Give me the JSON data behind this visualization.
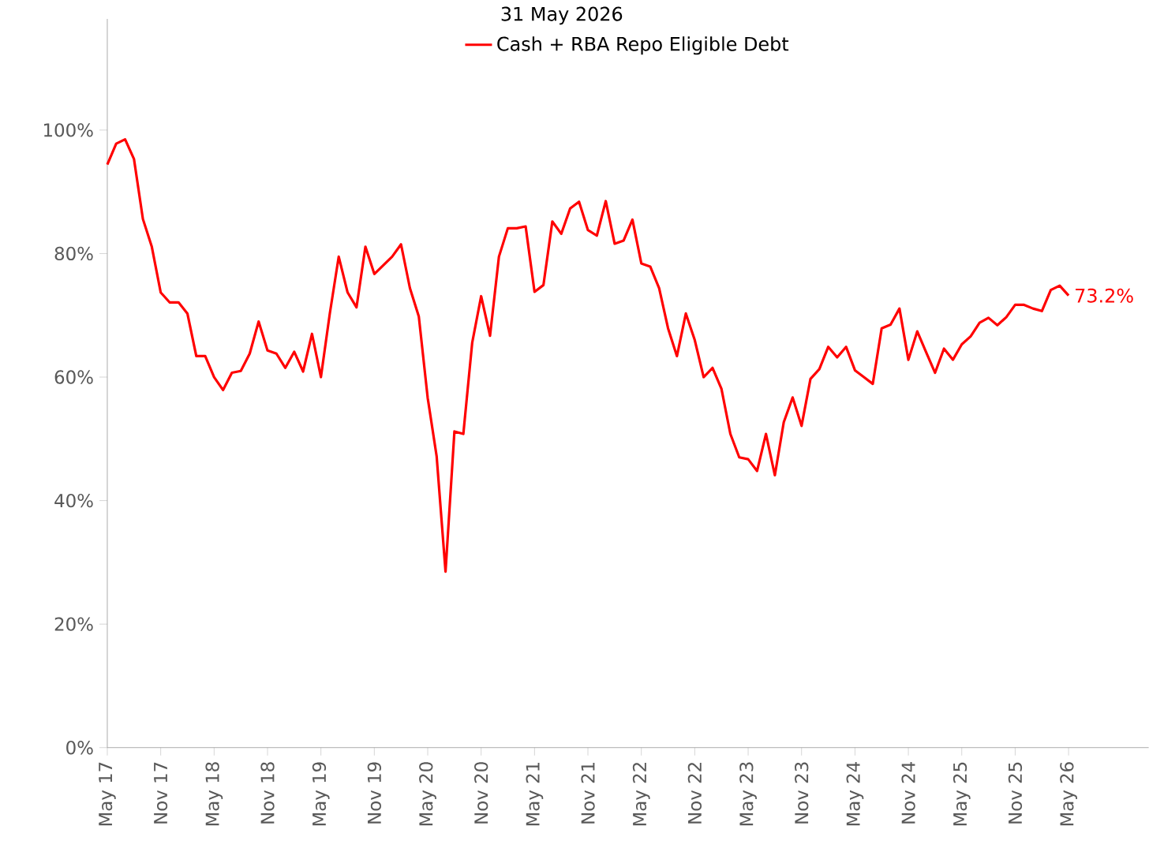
{
  "chart_data": {
    "type": "line",
    "subtitle": "31 May 2026",
    "x": [
      "2017-05",
      "2017-06",
      "2017-07",
      "2017-08",
      "2017-09",
      "2017-10",
      "2017-11",
      "2017-12",
      "2018-01",
      "2018-02",
      "2018-03",
      "2018-04",
      "2018-05",
      "2018-06",
      "2018-07",
      "2018-08",
      "2018-09",
      "2018-10",
      "2018-11",
      "2018-12",
      "2019-01",
      "2019-02",
      "2019-03",
      "2019-04",
      "2019-05",
      "2019-06",
      "2019-07",
      "2019-08",
      "2019-09",
      "2019-10",
      "2019-11",
      "2019-12",
      "2020-01",
      "2020-02",
      "2020-03",
      "2020-04",
      "2020-05",
      "2020-06",
      "2020-07",
      "2020-08",
      "2020-09",
      "2020-10",
      "2020-11",
      "2020-12",
      "2021-01",
      "2021-02",
      "2021-03",
      "2021-04",
      "2021-05",
      "2021-06",
      "2021-07",
      "2021-08",
      "2021-09",
      "2021-10",
      "2021-11",
      "2021-12",
      "2022-01",
      "2022-02",
      "2022-03",
      "2022-04",
      "2022-05",
      "2022-06",
      "2022-07",
      "2022-08",
      "2022-09",
      "2022-10",
      "2022-11",
      "2022-12",
      "2023-01",
      "2023-02",
      "2023-03",
      "2023-04",
      "2023-05",
      "2023-06",
      "2023-07",
      "2023-08",
      "2023-09",
      "2023-10",
      "2023-11",
      "2023-12",
      "2024-01",
      "2024-02",
      "2024-03",
      "2024-04",
      "2024-05",
      "2024-06",
      "2024-07",
      "2024-08",
      "2024-09",
      "2024-10",
      "2024-11",
      "2024-12",
      "2025-01",
      "2025-02",
      "2025-03",
      "2025-04",
      "2025-05",
      "2025-06",
      "2025-07",
      "2025-08",
      "2025-09",
      "2025-10",
      "2025-11",
      "2025-12",
      "2026-01",
      "2026-02",
      "2026-03",
      "2026-04",
      "2026-05"
    ],
    "series": [
      {
        "name": "Cash + RBA Repo Eligible Debt",
        "color": "#ff0000",
        "values": [
          94.4,
          97.8,
          98.5,
          95.3,
          85.6,
          81.1,
          73.7,
          72.1,
          72.1,
          70.3,
          63.4,
          63.4,
          60.0,
          57.9,
          60.7,
          61.0,
          63.8,
          69.0,
          64.3,
          63.8,
          61.5,
          64.1,
          60.9,
          67.0,
          60.0,
          70.3,
          79.5,
          73.7,
          71.3,
          81.1,
          76.7,
          78.1,
          79.5,
          81.5,
          74.4,
          69.8,
          56.6,
          47.2,
          28.5,
          51.2,
          50.8,
          65.6,
          73.1,
          66.7,
          79.5,
          84.1,
          84.1,
          84.4,
          73.8,
          74.9,
          85.2,
          83.2,
          87.3,
          88.4,
          83.8,
          82.9,
          88.5,
          81.6,
          82.1,
          85.5,
          78.4,
          77.9,
          74.4,
          67.9,
          63.4,
          70.3,
          66.0,
          60.0,
          61.5,
          58.1,
          50.8,
          47.0,
          46.7,
          44.8,
          50.8,
          44.1,
          52.7,
          56.7,
          52.1,
          59.7,
          61.3,
          64.9,
          63.2,
          64.9,
          61.1,
          60.0,
          58.9,
          67.9,
          68.5,
          71.1,
          62.8,
          67.4,
          64.0,
          60.7,
          64.6,
          62.8,
          65.3,
          66.6,
          68.8,
          69.6,
          68.4,
          69.7,
          71.7,
          71.7,
          71.1,
          70.7,
          74.1,
          74.8,
          73.2
        ]
      }
    ],
    "annotations": [
      {
        "text": "73.2%",
        "x": "2026-05",
        "y": 73.2
      }
    ],
    "xlim": [
      "2017-05",
      "2027-02"
    ],
    "xticks": [
      {
        "value": "2017-05",
        "label": "May 17"
      },
      {
        "value": "2017-11",
        "label": "Nov 17"
      },
      {
        "value": "2018-05",
        "label": "May 18"
      },
      {
        "value": "2018-11",
        "label": "Nov 18"
      },
      {
        "value": "2019-05",
        "label": "May 19"
      },
      {
        "value": "2019-11",
        "label": "Nov 19"
      },
      {
        "value": "2020-05",
        "label": "May 20"
      },
      {
        "value": "2020-11",
        "label": "Nov 20"
      },
      {
        "value": "2021-05",
        "label": "May 21"
      },
      {
        "value": "2021-11",
        "label": "Nov 21"
      },
      {
        "value": "2022-05",
        "label": "May 22"
      },
      {
        "value": "2022-11",
        "label": "Nov 22"
      },
      {
        "value": "2023-05",
        "label": "May 23"
      },
      {
        "value": "2023-11",
        "label": "Nov 23"
      },
      {
        "value": "2024-05",
        "label": "May 24"
      },
      {
        "value": "2024-11",
        "label": "Nov 24"
      },
      {
        "value": "2025-05",
        "label": "May 25"
      },
      {
        "value": "2025-11",
        "label": "Nov 25"
      },
      {
        "value": "2026-05",
        "label": "May 26"
      }
    ],
    "ylim": [
      0,
      118
    ],
    "yticks": [
      {
        "value": 0,
        "label": "0%"
      },
      {
        "value": 20,
        "label": "20%"
      },
      {
        "value": 40,
        "label": "40%"
      },
      {
        "value": 60,
        "label": "60%"
      },
      {
        "value": 80,
        "label": "80%"
      },
      {
        "value": 100,
        "label": "100%"
      }
    ],
    "legend": "top",
    "marker": "none",
    "line_style": "solid",
    "grid": false
  }
}
